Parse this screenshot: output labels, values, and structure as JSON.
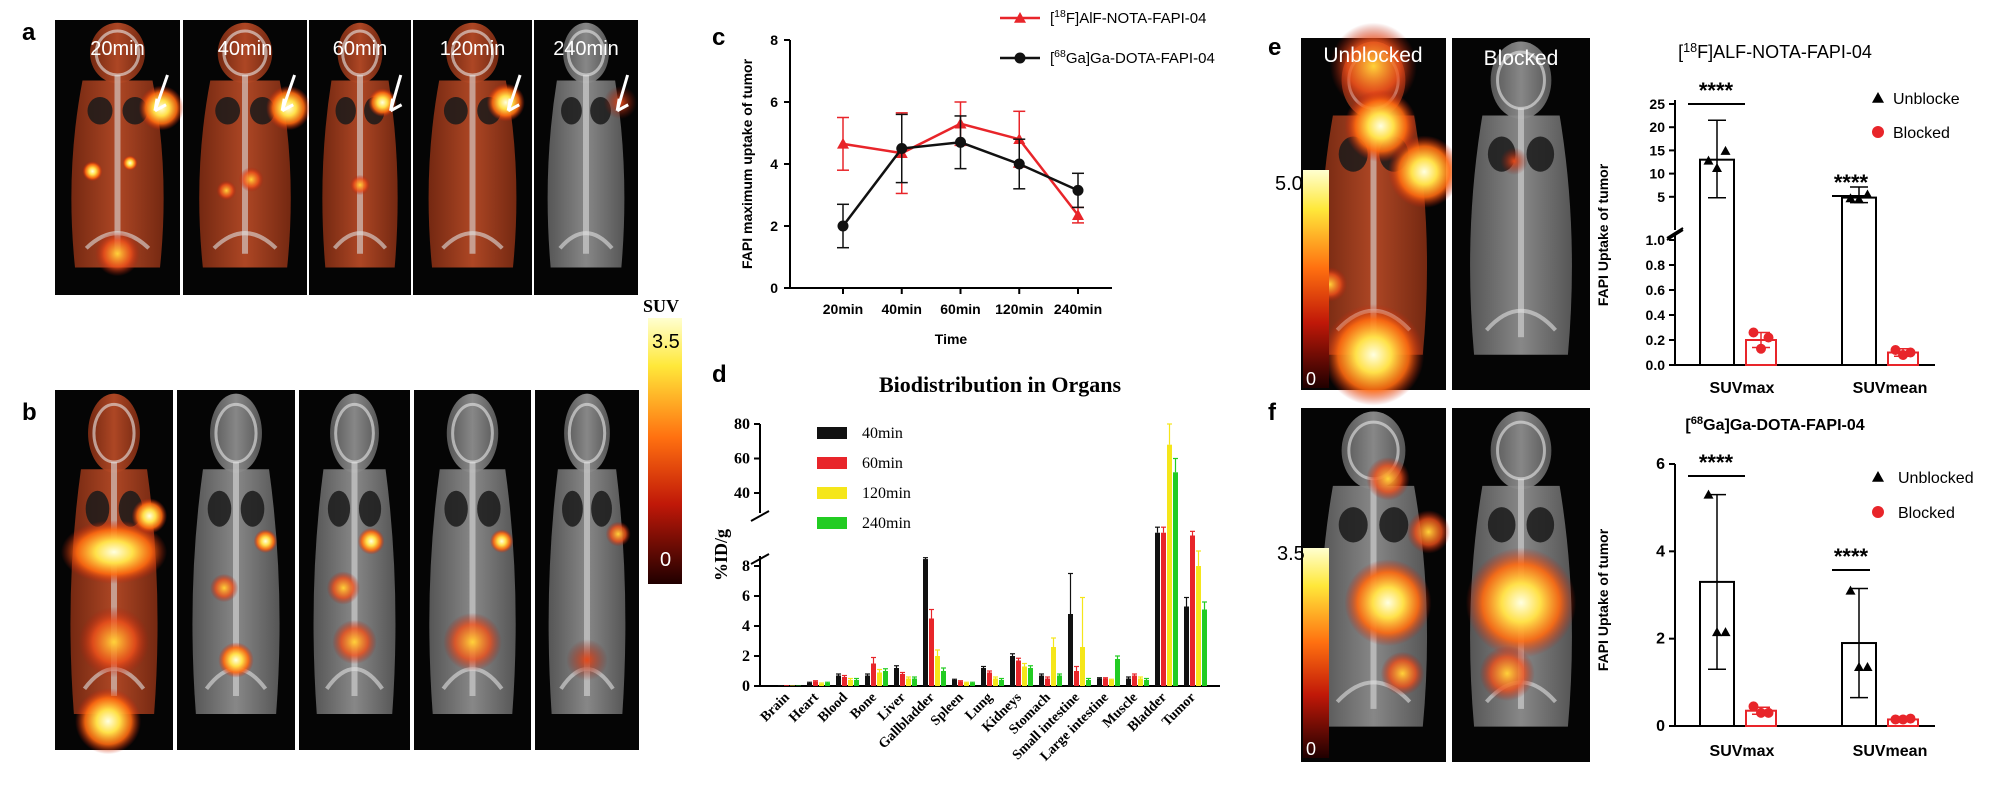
{
  "panels": {
    "a": "a",
    "b": "b",
    "c": "c",
    "d": "d",
    "e": "e",
    "f": "f"
  },
  "scan_a": {
    "times": [
      "20min",
      "40min",
      "60min",
      "120min",
      "240min"
    ]
  },
  "scale_ab": {
    "title": "SUV",
    "max": "3.5",
    "min": "0"
  },
  "scan_e": {
    "labels": [
      "Unblocked",
      "Blocked"
    ],
    "scale_max": "5.0",
    "scale_min": "0"
  },
  "scan_f": {
    "scale_max": "3.5",
    "scale_min": "0"
  },
  "colors": {
    "red": "#e8252a",
    "black": "#111111",
    "yellow": "#f5e61a",
    "green": "#22cc22"
  },
  "chart_data": [
    {
      "id": "c",
      "type": "line",
      "title": "",
      "xlabel": "Time",
      "ylabel": "FAPI maximum uptake of tumor",
      "categories": [
        "20min",
        "40min",
        "60min",
        "120min",
        "240min"
      ],
      "ylim": [
        0,
        8
      ],
      "yticks": [
        "0",
        "2",
        "4",
        "6",
        "8"
      ],
      "series": [
        {
          "name": "[18F]AlF-NOTA-FAPI-04",
          "name_parts": [
            "[",
            "18",
            "F]AlF-NOTA-FAPI-04"
          ],
          "color": "#e8252a",
          "marker": "triangle",
          "values": [
            4.65,
            4.35,
            5.3,
            4.8,
            2.35
          ],
          "err": [
            0.85,
            1.3,
            0.7,
            0.9,
            0.25
          ]
        },
        {
          "name": "[68Ga]Ga-DOTA-FAPI-04",
          "name_parts": [
            "[",
            "68",
            "Ga]Ga-DOTA-FAPI-04"
          ],
          "color": "#111111",
          "marker": "circle",
          "values": [
            2.0,
            4.5,
            4.7,
            4.0,
            3.15
          ],
          "err": [
            0.7,
            1.1,
            0.85,
            0.8,
            0.55
          ]
        }
      ]
    },
    {
      "id": "d",
      "type": "bar",
      "title": "Biodistribution in Organs",
      "ylabel": "%ID/g",
      "categories": [
        "Brain",
        "Heart",
        "Blood",
        "Bone",
        "Liver",
        "Gallbladder",
        "Spleen",
        "Lung",
        "Kidneys",
        "Stomach",
        "Small intestine",
        "Large intestine",
        "Muscle",
        "Bladder",
        "Tumor"
      ],
      "yticks_low": [
        "0",
        "2",
        "4",
        "6",
        "8"
      ],
      "yticks_high": [
        "40",
        "60",
        "80"
      ],
      "series": [
        {
          "name": "40min",
          "color": "#111111",
          "values": [
            0.05,
            0.2,
            0.7,
            0.7,
            1.2,
            10.5,
            0.4,
            1.2,
            2.0,
            0.7,
            4.8,
            0.5,
            0.5,
            20,
            5.3
          ],
          "err": [
            0,
            0.05,
            0.1,
            0.1,
            0.15,
            0.5,
            0.05,
            0.1,
            0.15,
            0.1,
            2.7,
            0.05,
            0.1,
            2,
            0.6
          ]
        },
        {
          "name": "60min",
          "color": "#e8252a",
          "values": [
            0.05,
            0.3,
            0.6,
            1.5,
            0.8,
            4.5,
            0.3,
            0.9,
            1.7,
            0.5,
            1.0,
            0.5,
            0.7,
            20,
            19
          ],
          "err": [
            0,
            0.05,
            0.1,
            0.4,
            0.1,
            0.6,
            0.05,
            0.1,
            0.15,
            0.1,
            0.3,
            0.05,
            0.1,
            2,
            1.5
          ]
        },
        {
          "name": "120min",
          "color": "#f5e61a",
          "values": [
            0.03,
            0.15,
            0.4,
            0.9,
            0.5,
            2.0,
            0.2,
            0.5,
            1.3,
            2.6,
            2.6,
            0.4,
            0.5,
            68,
            8.0
          ],
          "err": [
            0,
            0.05,
            0.1,
            0.2,
            0.1,
            0.4,
            0.05,
            0.1,
            0.2,
            0.6,
            3.3,
            0.05,
            0.1,
            12,
            1.0
          ]
        },
        {
          "name": "240min",
          "color": "#22cc22",
          "values": [
            0.03,
            0.2,
            0.4,
            1.0,
            0.5,
            1.0,
            0.2,
            0.4,
            1.2,
            0.7,
            0.4,
            1.8,
            0.4,
            52,
            5.1
          ],
          "err": [
            0,
            0.05,
            0.1,
            0.15,
            0.1,
            0.2,
            0.05,
            0.1,
            0.15,
            0.1,
            0.1,
            0.2,
            0.1,
            8,
            0.5
          ]
        }
      ]
    },
    {
      "id": "e",
      "type": "bar",
      "title": "[18F]ALF-NOTA-FAPI-04",
      "title_parts": [
        "[",
        "18",
        "F]ALF-NOTA-FAPI-04"
      ],
      "ylabel": "FAPI Uptake of tumor",
      "categories": [
        "SUVmax",
        "SUVmean"
      ],
      "yticks_low": [
        "0.0",
        "0.2",
        "0.4",
        "0.6",
        "0.8",
        "1.0"
      ],
      "yticks_high": [
        "5",
        "10",
        "15",
        "20",
        "25"
      ],
      "significance": [
        "****",
        "****"
      ],
      "series": [
        {
          "name": "Unblocke",
          "color": "#000000",
          "marker": "triangle",
          "values": [
            13.0,
            4.6
          ],
          "err": [
            8.5,
            2.5
          ],
          "points": [
            [
              12.8,
              11.2,
              14.9
            ],
            [
              4.3,
              3.8,
              5.5
            ]
          ]
        },
        {
          "name": "Blocked",
          "color": "#e8252a",
          "marker": "circle",
          "values": [
            0.2,
            0.1
          ],
          "err": [
            0.06,
            0.03
          ],
          "points": [
            [
              0.26,
              0.13,
              0.22
            ],
            [
              0.12,
              0.08,
              0.1
            ]
          ]
        }
      ]
    },
    {
      "id": "f",
      "type": "bar",
      "title": "[68Ga]Ga-DOTA-FAPI-04",
      "title_parts": [
        "[",
        "68",
        "Ga]Ga-DOTA-FAPI-04"
      ],
      "ylabel": "FAPI Uptake of tumor",
      "categories": [
        "SUVmax",
        "SUVmean"
      ],
      "ylim": [
        0,
        6
      ],
      "yticks": [
        "0",
        "2",
        "4",
        "6"
      ],
      "significance": [
        "****",
        "****"
      ],
      "series": [
        {
          "name": "Unblocked",
          "color": "#000000",
          "marker": "triangle",
          "values": [
            3.3,
            1.9
          ],
          "err": [
            2.0,
            1.25
          ],
          "points": [
            [
              5.3,
              2.15,
              2.15
            ],
            [
              3.1,
              1.35,
              1.35
            ]
          ]
        },
        {
          "name": "Blocked",
          "color": "#e8252a",
          "marker": "circle",
          "values": [
            0.35,
            0.15
          ],
          "err": [
            0.08,
            0.03
          ],
          "points": [
            [
              0.45,
              0.3,
              0.3
            ],
            [
              0.15,
              0.15,
              0.17
            ]
          ]
        }
      ]
    }
  ]
}
